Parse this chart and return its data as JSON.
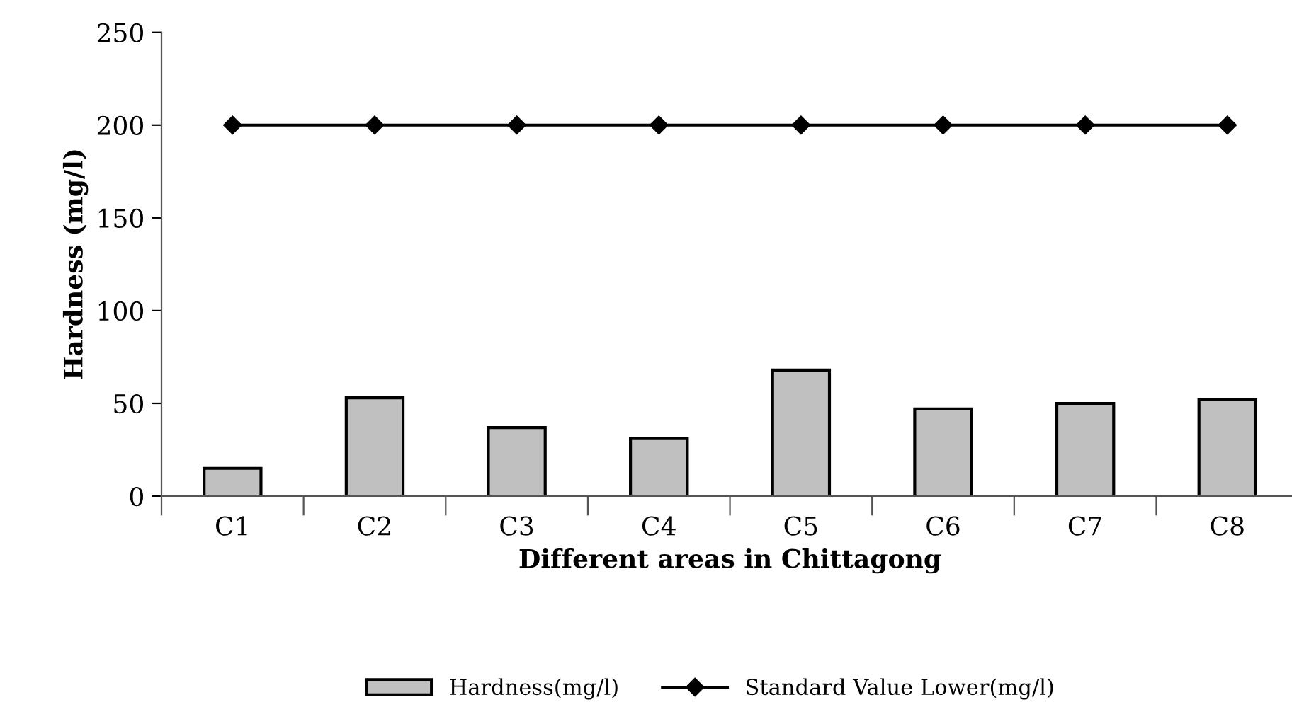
{
  "chart_data": {
    "type": "bar",
    "xlabel": "Different areas in Chittagong",
    "ylabel": "Hardness (mg/l)",
    "categories": [
      "C1",
      "C2",
      "C3",
      "C4",
      "C5",
      "C6",
      "C7",
      "C8"
    ],
    "series": [
      {
        "name": "Hardness(mg/l)",
        "color": "#c0c0c0",
        "values": [
          15,
          53,
          37,
          31,
          68,
          47,
          50,
          52
        ]
      },
      {
        "name": "Standard Value Lower(mg/l)",
        "type": "line",
        "color": "#000000",
        "marker": "diamond",
        "values": [
          200,
          200,
          200,
          200,
          200,
          200,
          200,
          200
        ]
      }
    ],
    "ylim": [
      0,
      250
    ],
    "yticks": [
      0,
      50,
      100,
      150,
      200,
      250
    ],
    "grid": false,
    "legend": "bottom"
  }
}
